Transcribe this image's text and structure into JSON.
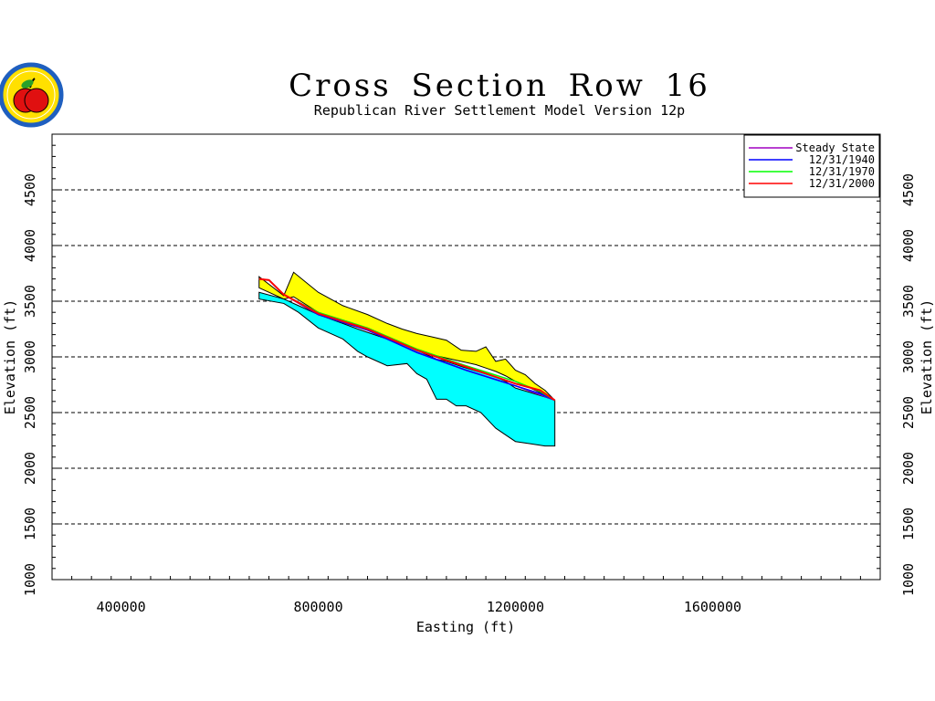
{
  "logo": {
    "icon": "apple-seal-icon",
    "colors": {
      "ring": "#1f5fbf",
      "fill": "#ffe000",
      "apple": "#e01010",
      "leaf": "#2aa02a"
    }
  },
  "chart_data": {
    "type": "area",
    "title": "Cross Section Row 16",
    "subtitle": "Republican River Settlement Model Version 12p",
    "xlabel": "Easting (ft)",
    "ylabel": "Elevation (ft)",
    "xlim": [
      260000,
      1940000
    ],
    "ylim": [
      1000,
      5000
    ],
    "xticks": [
      400000,
      800000,
      1200000,
      1600000
    ],
    "yticks": [
      1000,
      1500,
      2000,
      2500,
      3000,
      3500,
      4000,
      4500
    ],
    "grid": "horizontal dashed",
    "legend_position": "top-right",
    "layers": [
      {
        "name": "aquifer",
        "color": "#00ffff",
        "x": [
          680000,
          730000,
          760000,
          800000,
          850000,
          880000,
          900000,
          940000,
          980000,
          1000000,
          1020000,
          1040000,
          1060000,
          1080000,
          1100000,
          1130000,
          1160000,
          1180000,
          1200000,
          1230000,
          1260000,
          1280000
        ],
        "top": [
          3580,
          3520,
          3460,
          3380,
          3300,
          3250,
          3220,
          3160,
          3100,
          3060,
          3020,
          2980,
          2960,
          2930,
          2900,
          2860,
          2820,
          2780,
          2720,
          2680,
          2640,
          2610
        ],
        "bottom": [
          3520,
          3480,
          3400,
          3260,
          3160,
          3050,
          3000,
          2920,
          2940,
          2850,
          2800,
          2620,
          2620,
          2560,
          2560,
          2500,
          2360,
          2300,
          2240,
          2220,
          2200,
          2200
        ]
      },
      {
        "name": "unsaturated",
        "color": "#ffff00",
        "x": [
          680000,
          730000,
          750000,
          800000,
          850000,
          900000,
          940000,
          970000,
          1000000,
          1030000,
          1060000,
          1090000,
          1120000,
          1140000,
          1160000,
          1180000,
          1200000,
          1220000,
          1240000,
          1260000,
          1280000
        ],
        "top": [
          3720,
          3550,
          3760,
          3580,
          3460,
          3380,
          3300,
          3250,
          3210,
          3180,
          3150,
          3060,
          3050,
          3090,
          2960,
          2980,
          2880,
          2840,
          2760,
          2700,
          2610
        ],
        "bottom": [
          3620,
          3520,
          3540,
          3400,
          3320,
          3250,
          3180,
          3120,
          3060,
          3020,
          2990,
          2960,
          2930,
          2900,
          2870,
          2830,
          2780,
          2740,
          2700,
          2660,
          2610
        ]
      }
    ],
    "series": [
      {
        "name": "Steady State",
        "color": "#a000c0",
        "x": [
          680000,
          700000,
          730000,
          800000,
          900000,
          1000000,
          1100000,
          1200000,
          1250000,
          1280000
        ],
        "y": [
          3700,
          3690,
          3560,
          3380,
          3240,
          3040,
          2880,
          2740,
          2660,
          2610
        ]
      },
      {
        "name": "12/31/1940",
        "color": "#0000ff",
        "x": [
          680000,
          700000,
          730000,
          800000,
          900000,
          1000000,
          1100000,
          1200000,
          1250000,
          1280000
        ],
        "y": [
          3700,
          3690,
          3560,
          3380,
          3240,
          3040,
          2880,
          2740,
          2670,
          2610
        ]
      },
      {
        "name": "12/31/1970",
        "color": "#00ff00",
        "x": [
          680000,
          700000,
          730000,
          800000,
          900000,
          1000000,
          1100000,
          1200000,
          1250000,
          1280000
        ],
        "y": [
          3700,
          3690,
          3560,
          3400,
          3260,
          3070,
          2920,
          2780,
          2690,
          2610
        ]
      },
      {
        "name": "12/31/2000",
        "color": "#ff0000",
        "x": [
          680000,
          700000,
          730000,
          800000,
          900000,
          1000000,
          1100000,
          1200000,
          1250000,
          1280000
        ],
        "y": [
          3700,
          3690,
          3560,
          3390,
          3250,
          3060,
          2910,
          2760,
          2700,
          2610
        ]
      }
    ]
  }
}
